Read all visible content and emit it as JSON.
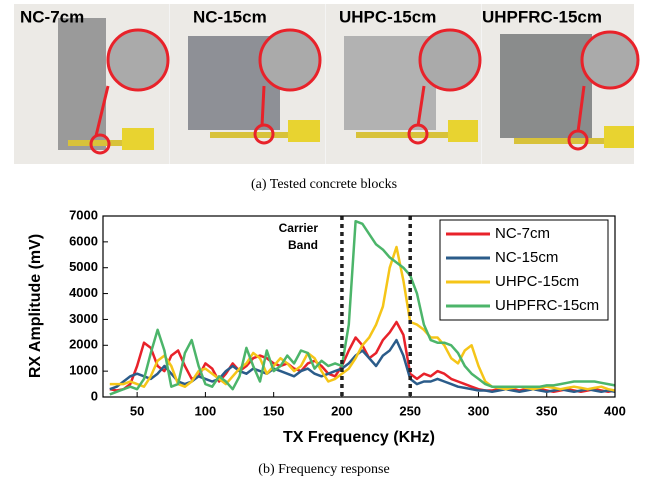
{
  "photos": {
    "labels": [
      "NC-7cm",
      "NC-15cm",
      "UHPC-15cm",
      "UHPFRC-15cm"
    ],
    "caption": "(a)  Tested concrete blocks"
  },
  "chart_data": {
    "type": "line",
    "x_label": "TX Frequency (KHz)",
    "y_label": "RX Amplitude (mV)",
    "caption": "(b)  Frequency response",
    "annotation": [
      "Carrier",
      "Band"
    ],
    "carrier_band": [
      200,
      250
    ],
    "xlim": [
      25,
      400
    ],
    "xticks": [
      50,
      100,
      150,
      200,
      250,
      300,
      350,
      400
    ],
    "ylim": [
      0,
      7000
    ],
    "yticks": [
      0,
      1000,
      2000,
      3000,
      4000,
      5000,
      6000,
      7000
    ],
    "legend": "upper right",
    "x": [
      30,
      35,
      40,
      45,
      50,
      55,
      60,
      65,
      70,
      75,
      80,
      85,
      90,
      95,
      100,
      105,
      110,
      115,
      120,
      125,
      130,
      135,
      140,
      145,
      150,
      155,
      160,
      165,
      170,
      175,
      180,
      185,
      190,
      195,
      200,
      205,
      210,
      215,
      220,
      225,
      230,
      235,
      240,
      245,
      250,
      255,
      260,
      265,
      270,
      275,
      280,
      285,
      290,
      295,
      300,
      305,
      310,
      315,
      320,
      325,
      330,
      335,
      340,
      345,
      350,
      355,
      360,
      365,
      370,
      375,
      380,
      385,
      390,
      395,
      400
    ],
    "series": [
      {
        "name": "NC-7cm",
        "color": "#e8222a",
        "values": [
          300,
          250,
          300,
          500,
          1200,
          2100,
          1900,
          1200,
          1000,
          1600,
          1800,
          1200,
          700,
          800,
          1300,
          1100,
          600,
          900,
          1300,
          1000,
          1200,
          1500,
          1600,
          1500,
          1300,
          1200,
          1300,
          1100,
          1000,
          1300,
          1400,
          1200,
          900,
          800,
          1200,
          1800,
          2300,
          2000,
          1500,
          1700,
          2200,
          2500,
          2900,
          2400,
          900,
          700,
          900,
          800,
          1000,
          900,
          700,
          600,
          500,
          400,
          300,
          250,
          250,
          300,
          350,
          300,
          250,
          300,
          350,
          300,
          250,
          200,
          250,
          300,
          250,
          200,
          250,
          300,
          250,
          200,
          250
        ]
      },
      {
        "name": "NC-15cm",
        "color": "#2b5c8a",
        "values": [
          300,
          400,
          600,
          800,
          900,
          800,
          700,
          900,
          1200,
          900,
          600,
          500,
          600,
          800,
          700,
          600,
          700,
          1000,
          1200,
          1000,
          900,
          1100,
          1000,
          900,
          1100,
          1000,
          900,
          800,
          1000,
          1100,
          900,
          800,
          900,
          1000,
          1100,
          1300,
          1600,
          1800,
          1500,
          1200,
          1600,
          1800,
          2200,
          1600,
          700,
          500,
          600,
          600,
          700,
          600,
          500,
          400,
          350,
          300,
          250,
          250,
          200,
          250,
          300,
          250,
          200,
          250,
          300,
          250,
          200,
          250,
          300,
          250,
          200,
          250,
          300,
          250,
          200,
          250,
          200
        ]
      },
      {
        "name": "UHPC-15cm",
        "color": "#f5c518",
        "values": [
          500,
          500,
          500,
          600,
          500,
          400,
          800,
          1400,
          1600,
          1200,
          500,
          400,
          600,
          1000,
          1100,
          900,
          700,
          500,
          800,
          1100,
          1300,
          1700,
          1500,
          900,
          1200,
          1500,
          1300,
          1000,
          1200,
          1700,
          1500,
          1000,
          600,
          700,
          900,
          1100,
          1500,
          2000,
          2300,
          2800,
          3500,
          5000,
          5800,
          4500,
          2900,
          2800,
          2600,
          2300,
          2300,
          2000,
          1500,
          1300,
          1800,
          2000,
          1200,
          600,
          400,
          350,
          300,
          350,
          400,
          350,
          300,
          350,
          400,
          350,
          300,
          350,
          400,
          350,
          300,
          350,
          400,
          300,
          250
        ]
      },
      {
        "name": "UHPFRC-15cm",
        "color": "#4cb56a",
        "values": [
          100,
          200,
          300,
          400,
          300,
          700,
          1700,
          2600,
          1800,
          400,
          500,
          1700,
          2200,
          1200,
          500,
          400,
          800,
          600,
          300,
          800,
          1900,
          1200,
          600,
          1800,
          1000,
          1200,
          1600,
          1300,
          1800,
          1700,
          1100,
          1400,
          1200,
          1300,
          1200,
          2800,
          6800,
          6700,
          6300,
          5900,
          5700,
          5400,
          5200,
          5000,
          4700,
          4000,
          2800,
          2200,
          2100,
          2100,
          2000,
          1700,
          1200,
          900,
          700,
          500,
          400,
          400,
          400,
          400,
          400,
          400,
          400,
          400,
          450,
          450,
          500,
          550,
          600,
          600,
          600,
          600,
          550,
          500,
          450
        ]
      }
    ]
  }
}
